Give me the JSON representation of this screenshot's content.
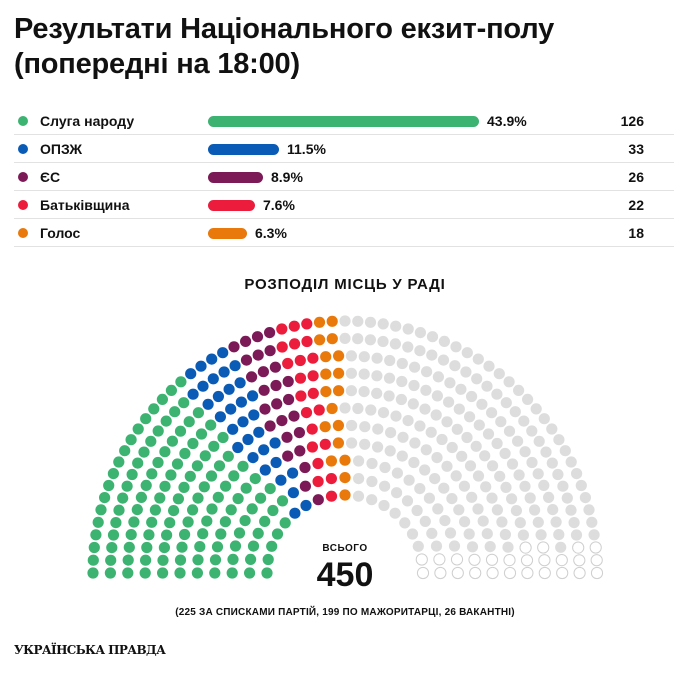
{
  "header": {
    "title_line1": "Результати Національного екзит-полу",
    "title_line2": "(попередні на 18:00)"
  },
  "chart_data": [
    {
      "type": "bar",
      "categories": [
        "Слуга народу",
        "ОПЗЖ",
        "ЄС",
        "Батьківщина",
        "Голос"
      ],
      "values": [
        43.9,
        11.5,
        8.9,
        7.6,
        6.3
      ],
      "value_labels": [
        "43.9%",
        "11.5%",
        "8.9%",
        "7.6%",
        "6.3%"
      ],
      "seats": [
        126,
        33,
        26,
        22,
        18
      ],
      "seat_labels": [
        "126",
        "33",
        "26",
        "22",
        "18"
      ],
      "colors": [
        "#3cb371",
        "#0a5bb5",
        "#7b1a56",
        "#ec1c3c",
        "#e8790a"
      ],
      "title": "",
      "xlabel": "",
      "ylabel": "",
      "xlim": [
        0,
        45
      ]
    },
    {
      "type": "hemicycle",
      "title": "РОЗПОДІЛ МІСЦЬ У РАДІ",
      "total_label": "ВСЬОГО",
      "total": 450,
      "total_text": "450",
      "segments": [
        {
          "party": "Слуга народу",
          "seats": 126,
          "color": "#3cb371"
        },
        {
          "party": "ОПЗЖ",
          "seats": 33,
          "color": "#0a5bb5"
        },
        {
          "party": "ЄС",
          "seats": 26,
          "color": "#7b1a56"
        },
        {
          "party": "Батьківщина",
          "seats": 22,
          "color": "#ec1c3c"
        },
        {
          "party": "Голос",
          "seats": 18,
          "color": "#e8790a"
        },
        {
          "party": "",
          "seats": 199,
          "color": "#dddddd"
        },
        {
          "party": "",
          "seats": 26,
          "color": "outline"
        }
      ],
      "footnote": "(225 ЗА СПИСКАМИ ПАРТІЙ, 199 ПО МАЖОРИТАРЦІ, 26 ВАКАНТНІ)"
    }
  ],
  "brand": {
    "logo_text": "УКРАЇНСЬКА ПРАВДА"
  }
}
